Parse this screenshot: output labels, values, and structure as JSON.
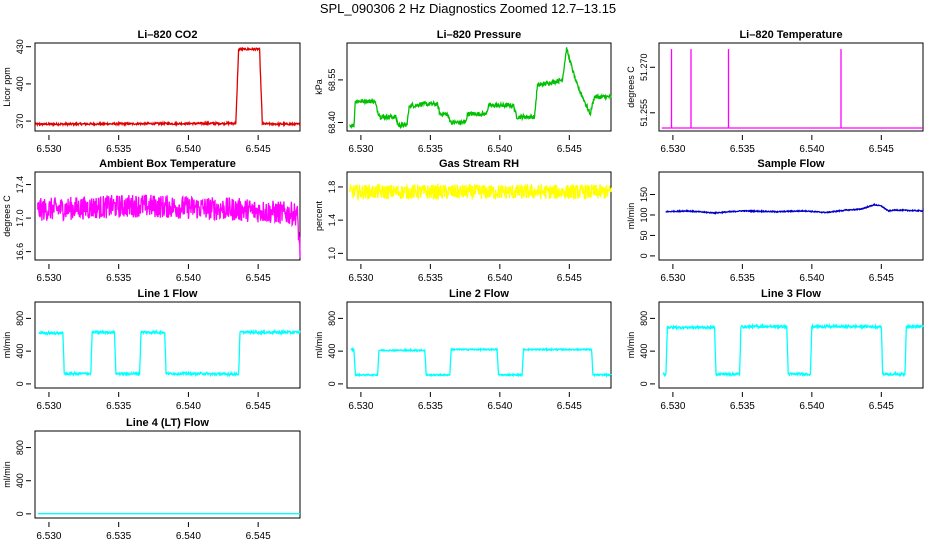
{
  "title": "SPL_090306  2 Hz Diagnostics Zoomed 12.7–13.15",
  "colors": {
    "red": "#e00000",
    "green": "#00c000",
    "magenta": "#ff00ff",
    "yellow": "#ffff00",
    "blue": "#0000c8",
    "cyan": "#00ffff"
  },
  "chart_data": [
    {
      "type": "line",
      "title": "Li–820 CO2",
      "ylabel": "Licor ppm",
      "color": "#e00000",
      "xlim": [
        6.529,
        6.548
      ],
      "ylim": [
        362,
        433
      ],
      "xticks": [
        "6.530",
        "6.535",
        "6.540",
        "6.545"
      ],
      "xtick_values": [
        6.53,
        6.535,
        6.54,
        6.545
      ],
      "yticks": [
        "370",
        "400",
        "430"
      ],
      "ytick_values": [
        370,
        400,
        430
      ],
      "noise": 0.8,
      "series": [
        {
          "name": "CO2",
          "x": [
            6.529,
            6.5434,
            6.5436,
            6.5451,
            6.5453,
            6.548
          ],
          "values": [
            367.5,
            368.2,
            428,
            428,
            367.8,
            367.5
          ]
        }
      ]
    },
    {
      "type": "line",
      "title": "Li–820 Pressure",
      "ylabel": "kPa",
      "color": "#00c000",
      "xlim": [
        6.529,
        6.548
      ],
      "ylim": [
        68.37,
        68.68
      ],
      "xticks": [
        "6.530",
        "6.535",
        "6.540",
        "6.545"
      ],
      "xtick_values": [
        6.53,
        6.535,
        6.54,
        6.545
      ],
      "yticks": [
        "68.40",
        "68.55"
      ],
      "ytick_values": [
        68.4,
        68.55
      ],
      "noise": 0.008,
      "series": [
        {
          "name": "Pressure",
          "x": [
            6.5292,
            6.5295,
            6.5296,
            6.531,
            6.5312,
            6.5314,
            6.5325,
            6.5327,
            6.5333,
            6.5335,
            6.534,
            6.5343,
            6.5345,
            6.5355,
            6.5357,
            6.5362,
            6.5365,
            6.5375,
            6.5377,
            6.539,
            6.5392,
            6.541,
            6.5412,
            6.5414,
            6.5425,
            6.5427,
            6.5445,
            6.5448,
            6.5455,
            6.5465,
            6.5468,
            6.548
          ],
          "values": [
            68.39,
            68.39,
            68.475,
            68.475,
            68.44,
            68.42,
            68.42,
            68.39,
            68.39,
            68.46,
            68.46,
            68.465,
            68.465,
            68.465,
            68.43,
            68.43,
            68.4,
            68.4,
            68.43,
            68.43,
            68.46,
            68.46,
            68.42,
            68.42,
            68.42,
            68.53,
            68.55,
            68.66,
            68.54,
            68.43,
            68.49,
            68.49
          ]
        }
      ]
    },
    {
      "type": "line",
      "title": "Li–820 Temperature",
      "ylabel": "degrees C",
      "color": "#ff00ff",
      "xlim": [
        6.529,
        6.548
      ],
      "ylim": [
        51.249,
        51.278
      ],
      "xticks": [
        "6.530",
        "6.535",
        "6.540",
        "6.545"
      ],
      "xtick_values": [
        6.53,
        6.535,
        6.54,
        6.545
      ],
      "yticks": [
        "51.255",
        "51.270"
      ],
      "ytick_values": [
        51.255,
        51.27
      ],
      "noise": 0,
      "series": [
        {
          "name": "Temperature",
          "x": [
            6.5292,
            6.5299,
            6.5299,
            6.5299,
            6.5302,
            6.5302,
            6.5302,
            6.5313,
            6.5313,
            6.5313,
            6.534,
            6.534,
            6.534,
            6.5421,
            6.5421,
            6.5421,
            6.548
          ],
          "values": [
            51.25,
            51.25,
            51.276,
            51.25,
            51.25,
            51.25,
            51.25,
            51.25,
            51.276,
            51.25,
            51.25,
            51.276,
            51.25,
            51.25,
            51.276,
            51.25,
            51.25
          ]
        }
      ]
    },
    {
      "type": "line",
      "title": "Ambient Box Temperature",
      "ylabel": "degrees C",
      "color": "#ff00ff",
      "xlim": [
        6.529,
        6.548
      ],
      "ylim": [
        16.5,
        17.55
      ],
      "xticks": [
        "6.530",
        "6.535",
        "6.540",
        "6.545"
      ],
      "xtick_values": [
        6.53,
        6.535,
        6.54,
        6.545
      ],
      "yticks": [
        "16.6",
        "17.0",
        "17.4"
      ],
      "ytick_values": [
        16.6,
        17.0,
        17.4
      ],
      "noise": 0.14,
      "series": [
        {
          "name": "Ambient",
          "x": [
            6.5292,
            6.5365,
            6.5438,
            6.5478,
            6.548
          ],
          "values": [
            17.1,
            17.15,
            17.1,
            17.05,
            16.62
          ]
        }
      ]
    },
    {
      "type": "line",
      "title": "Gas Stream RH",
      "ylabel": "percent",
      "color": "#ffff00",
      "xlim": [
        6.529,
        6.548
      ],
      "ylim": [
        0.92,
        1.98
      ],
      "xticks": [
        "6.530",
        "6.535",
        "6.540",
        "6.545"
      ],
      "xtick_values": [
        6.53,
        6.535,
        6.54,
        6.545
      ],
      "yticks": [
        "1.0",
        "1.4",
        "1.8"
      ],
      "ytick_values": [
        1.0,
        1.4,
        1.8
      ],
      "noise": 0.09,
      "series": [
        {
          "name": "RH",
          "x": [
            6.5292,
            6.548
          ],
          "values": [
            1.74,
            1.74
          ]
        }
      ]
    },
    {
      "type": "line",
      "title": "Sample Flow",
      "ylabel": "ml/min",
      "color": "#0000c8",
      "xlim": [
        6.529,
        6.548
      ],
      "ylim": [
        -10,
        205
      ],
      "xticks": [
        "6.530",
        "6.535",
        "6.540",
        "6.545"
      ],
      "xtick_values": [
        6.53,
        6.535,
        6.54,
        6.545
      ],
      "yticks": [
        "0",
        "50",
        "100",
        "150"
      ],
      "ytick_values": [
        0,
        50,
        100,
        150
      ],
      "noise": 1.2,
      "series": [
        {
          "name": "Sample",
          "x": [
            6.5295,
            6.531,
            6.533,
            6.535,
            6.5375,
            6.5395,
            6.541,
            6.5425,
            6.5435,
            6.5445,
            6.545,
            6.5455,
            6.546,
            6.548
          ],
          "values": [
            108,
            110,
            105,
            110,
            108,
            110,
            106,
            112,
            114,
            125,
            122,
            110,
            112,
            110
          ]
        }
      ]
    },
    {
      "type": "line",
      "title": "Line 1 Flow",
      "ylabel": "ml/min",
      "color": "#00ffff",
      "xlim": [
        6.529,
        6.548
      ],
      "ylim": [
        -50,
        1000
      ],
      "xticks": [
        "6.530",
        "6.535",
        "6.540",
        "6.545"
      ],
      "xtick_values": [
        6.53,
        6.535,
        6.54,
        6.545
      ],
      "yticks": [
        "0",
        "400",
        "800"
      ],
      "ytick_values": [
        0,
        400,
        800
      ],
      "noise": 15,
      "series": [
        {
          "name": "Line 1",
          "x": [
            6.5293,
            6.531,
            6.5311,
            6.533,
            6.5331,
            6.5347,
            6.5348,
            6.5365,
            6.5366,
            6.5383,
            6.5384,
            6.5413,
            6.5414,
            6.5436,
            6.5437,
            6.548
          ],
          "values": [
            620,
            620,
            125,
            125,
            630,
            630,
            125,
            125,
            630,
            630,
            125,
            125,
            120,
            120,
            630,
            630
          ]
        }
      ]
    },
    {
      "type": "line",
      "title": "Line 2 Flow",
      "ylabel": "ml/min",
      "color": "#00ffff",
      "xlim": [
        6.529,
        6.548
      ],
      "ylim": [
        -50,
        1000
      ],
      "xticks": [
        "6.530",
        "6.535",
        "6.540",
        "6.545"
      ],
      "xtick_values": [
        6.53,
        6.535,
        6.54,
        6.545
      ],
      "yticks": [
        "0",
        "400",
        "800"
      ],
      "ytick_values": [
        0,
        400,
        800
      ],
      "noise": 8,
      "series": [
        {
          "name": "Line 2",
          "x": [
            6.5293,
            6.5295,
            6.5296,
            6.5312,
            6.5313,
            6.5346,
            6.5347,
            6.5364,
            6.5365,
            6.5398,
            6.5399,
            6.5416,
            6.5417,
            6.5466,
            6.5467,
            6.548
          ],
          "values": [
            420,
            420,
            110,
            110,
            410,
            410,
            110,
            110,
            420,
            420,
            110,
            110,
            420,
            420,
            110,
            110
          ]
        }
      ]
    },
    {
      "type": "line",
      "title": "Line 3 Flow",
      "ylabel": "ml/min",
      "color": "#00ffff",
      "xlim": [
        6.529,
        6.548
      ],
      "ylim": [
        -50,
        1000
      ],
      "xticks": [
        "6.530",
        "6.535",
        "6.540",
        "6.545"
      ],
      "xtick_values": [
        6.53,
        6.535,
        6.54,
        6.545
      ],
      "yticks": [
        "0",
        "400",
        "800"
      ],
      "ytick_values": [
        0,
        400,
        800
      ],
      "noise": 15,
      "series": [
        {
          "name": "Line 3",
          "x": [
            6.5293,
            6.5295,
            6.5296,
            6.533,
            6.5331,
            6.5348,
            6.5349,
            6.5382,
            6.5383,
            6.5399,
            6.54,
            6.545,
            6.5451,
            6.5467,
            6.5468,
            6.548
          ],
          "values": [
            120,
            120,
            690,
            690,
            120,
            120,
            700,
            700,
            120,
            120,
            700,
            700,
            120,
            120,
            700,
            700
          ]
        }
      ]
    },
    {
      "type": "line",
      "title": "Line 4 (LT) Flow",
      "ylabel": "ml/min",
      "color": "#00ffff",
      "xlim": [
        6.529,
        6.548
      ],
      "ylim": [
        -50,
        1000
      ],
      "xticks": [
        "6.530",
        "6.535",
        "6.540",
        "6.545"
      ],
      "xtick_values": [
        6.53,
        6.535,
        6.54,
        6.545
      ],
      "yticks": [
        "0",
        "400",
        "800"
      ],
      "ytick_values": [
        0,
        400,
        800
      ],
      "noise": 0,
      "series": [
        {
          "name": "Line 4",
          "x": [
            6.5292,
            6.548
          ],
          "values": [
            2,
            2
          ]
        }
      ]
    }
  ]
}
